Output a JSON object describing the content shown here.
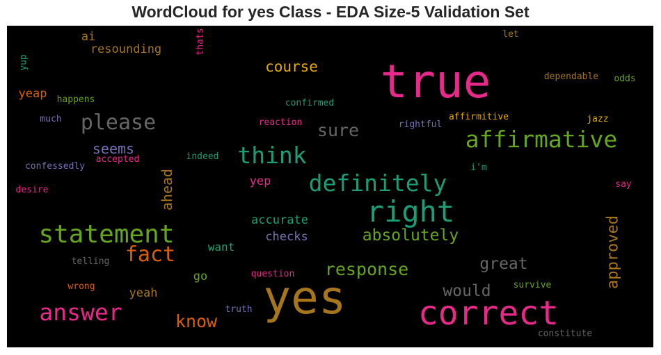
{
  "chart_data": {
    "type": "wordcloud",
    "title": "WordCloud for yes Class - EDA Size-5 Validation Set",
    "background": "#000000",
    "words": [
      {
        "text": "yes",
        "color": "#a6761d"
      },
      {
        "text": "true",
        "color": "#e7298a"
      },
      {
        "text": "correct",
        "color": "#e7298a"
      },
      {
        "text": "right",
        "color": "#1b9e77"
      },
      {
        "text": "statement",
        "color": "#66a61e"
      },
      {
        "text": "definitely",
        "color": "#1b9e77"
      },
      {
        "text": "affirmative",
        "color": "#66a61e"
      },
      {
        "text": "answer",
        "color": "#e7298a"
      },
      {
        "text": "think",
        "color": "#1b9e77"
      },
      {
        "text": "please",
        "color": "#666666"
      },
      {
        "text": "fact",
        "color": "#d95f02"
      },
      {
        "text": "response",
        "color": "#66a61e"
      },
      {
        "text": "absolutely",
        "color": "#66a61e"
      },
      {
        "text": "sure",
        "color": "#666666"
      },
      {
        "text": "know",
        "color": "#d95f02"
      },
      {
        "text": "great",
        "color": "#666666"
      },
      {
        "text": "would",
        "color": "#666666"
      },
      {
        "text": "approved",
        "color": "#a6761d"
      },
      {
        "text": "course",
        "color": "#e6ab02"
      },
      {
        "text": "ahead",
        "color": "#a6761d"
      },
      {
        "text": "seems",
        "color": "#7570b3"
      },
      {
        "text": "accurate",
        "color": "#1b9e77"
      },
      {
        "text": "checks",
        "color": "#7570b3"
      },
      {
        "text": "resounding",
        "color": "#a6761d"
      },
      {
        "text": "yeah",
        "color": "#a6761d"
      },
      {
        "text": "yeap",
        "color": "#d95f02"
      },
      {
        "text": "ai",
        "color": "#a6761d"
      },
      {
        "text": "want",
        "color": "#1b9e77"
      },
      {
        "text": "yep",
        "color": "#e7298a"
      },
      {
        "text": "go",
        "color": "#66a61e"
      },
      {
        "text": "happens",
        "color": "#66a61e"
      },
      {
        "text": "confirmed",
        "color": "#1b9e77"
      },
      {
        "text": "reaction",
        "color": "#e7298a"
      },
      {
        "text": "rightful",
        "color": "#7570b3"
      },
      {
        "text": "affirmitive",
        "color": "#e6ab02"
      },
      {
        "text": "dependable",
        "color": "#a6761d"
      },
      {
        "text": "odds",
        "color": "#66a61e"
      },
      {
        "text": "jazz",
        "color": "#e6ab02"
      },
      {
        "text": "much",
        "color": "#7570b3"
      },
      {
        "text": "accepted",
        "color": "#e7298a"
      },
      {
        "text": "indeed",
        "color": "#1b9e77"
      },
      {
        "text": "confessedly",
        "color": "#7570b3"
      },
      {
        "text": "desire",
        "color": "#e7298a"
      },
      {
        "text": "i'm",
        "color": "#1b9e77"
      },
      {
        "text": "say",
        "color": "#e7298a"
      },
      {
        "text": "let",
        "color": "#a6761d"
      },
      {
        "text": "thats",
        "color": "#e7298a"
      },
      {
        "text": "yup",
        "color": "#1b9e77"
      },
      {
        "text": "telling",
        "color": "#666666"
      },
      {
        "text": "question",
        "color": "#e7298a"
      },
      {
        "text": "wrong",
        "color": "#d95f02"
      },
      {
        "text": "truth",
        "color": "#7570b3"
      },
      {
        "text": "survive",
        "color": "#66a61e"
      },
      {
        "text": "constitute",
        "color": "#666666"
      }
    ]
  }
}
